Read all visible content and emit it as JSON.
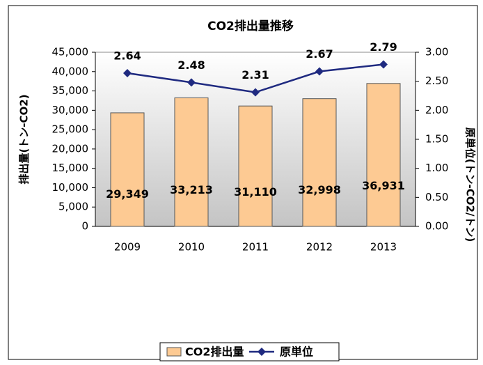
{
  "chart_data": {
    "type": "bar",
    "title": "CO2排出量推移",
    "categories": [
      "2009",
      "2010",
      "2011",
      "2012",
      "2013"
    ],
    "series": [
      {
        "name": "CO2排出量",
        "type": "bar",
        "color": "#fdca93",
        "values": [
          29349,
          33213,
          31110,
          32998,
          36931
        ],
        "value_labels": [
          "29,349",
          "33,213",
          "31,110",
          "32,998",
          "36,931"
        ]
      },
      {
        "name": "原単位",
        "type": "line",
        "axis": "y2",
        "color": "#1f2a80",
        "values": [
          2.64,
          2.48,
          2.31,
          2.67,
          2.79
        ]
      }
    ],
    "ylabel": "排出量(トン-CO2)",
    "y2label": "原単位(トン-CO2/トン)",
    "ylim": [
      0,
      45000
    ],
    "yticks": [
      0,
      {
        "value": 5000,
        "label": "5,000"
      },
      {
        "value": 10000,
        "label": "10,000"
      },
      {
        "value": 15000,
        "label": "15,000"
      },
      {
        "value": 20000,
        "label": "20,000"
      },
      {
        "value": 25000,
        "label": "25,000"
      },
      {
        "value": 30000,
        "label": "30,000"
      },
      {
        "value": 35000,
        "label": "35,000"
      },
      {
        "value": 40000,
        "label": "40,000"
      },
      {
        "value": 45000,
        "label": "45,000"
      }
    ],
    "y2lim": [
      0,
      3
    ],
    "y2ticks": [
      {
        "value": 0,
        "label": "0.00"
      },
      {
        "value": 0.5,
        "label": "0.50"
      },
      {
        "value": 1,
        "label": "1.00"
      },
      {
        "value": 1.5,
        "label": "1.50"
      },
      {
        "value": 2,
        "label": "2.00"
      },
      {
        "value": 2.5,
        "label": "2.50"
      },
      {
        "value": 3,
        "label": "3.00"
      }
    ],
    "legend": "bottom"
  }
}
